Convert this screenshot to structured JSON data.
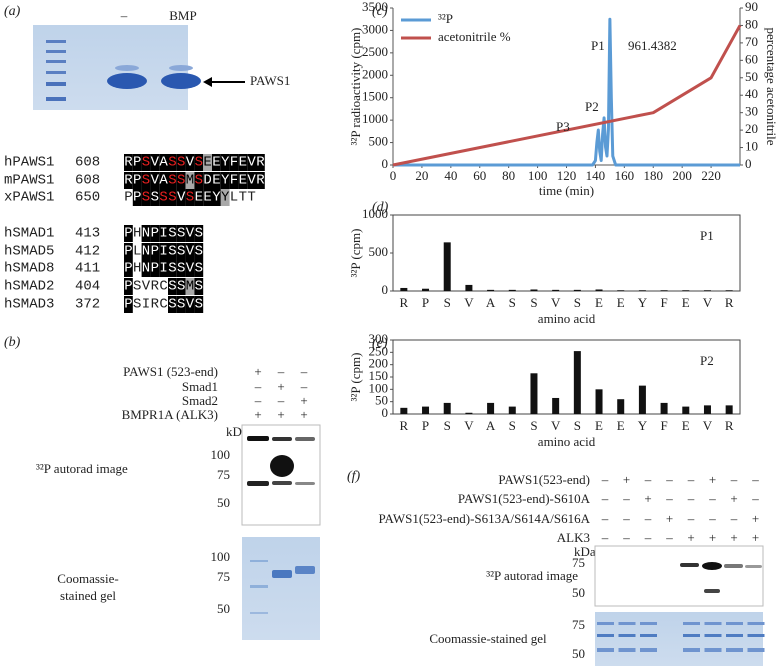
{
  "chart_data": [
    {
      "type": "line",
      "panel": "(c)",
      "xlabel": "time (min)",
      "ylabel": "³²P radioactivity (cpm)",
      "y2label": "percentage acetonitrile",
      "xlim": [
        0,
        240
      ],
      "xticks": [
        0,
        20,
        40,
        60,
        80,
        100,
        120,
        140,
        160,
        180,
        200,
        220
      ],
      "ylim": [
        0,
        3500
      ],
      "yticks": [
        0,
        500,
        1000,
        1500,
        2000,
        2500,
        3000,
        3500
      ],
      "y2lim": [
        0,
        90
      ],
      "y2ticks": [
        0,
        10,
        20,
        30,
        40,
        50,
        60,
        70,
        80,
        90
      ],
      "legend": "upper left",
      "series": [
        {
          "name": "³²P",
          "color": "#5b9bd5",
          "x": [
            0,
            130,
            138,
            140,
            141,
            142,
            143,
            144,
            145,
            146,
            147,
            148,
            149,
            150,
            151,
            152,
            154,
            160,
            240
          ],
          "values": [
            0,
            0,
            0,
            100,
            500,
            780,
            300,
            100,
            700,
            1050,
            400,
            200,
            800,
            3250,
            1500,
            200,
            0,
            0,
            0
          ]
        },
        {
          "name": "acetonitrile %",
          "color": "#c0504d",
          "axis": "y2",
          "x": [
            0,
            180,
            220,
            240
          ],
          "values": [
            0,
            30,
            50,
            80
          ]
        }
      ],
      "annotations": [
        "P1",
        "961.4382",
        "P2",
        "P3"
      ]
    },
    {
      "type": "bar",
      "panel": "(d)",
      "xlabel": "amino acid",
      "ylabel": "³²P (cpm)",
      "annotation": "P1",
      "color": "#111111",
      "categories": [
        "R",
        "P",
        "S",
        "V",
        "A",
        "S",
        "S",
        "V",
        "S",
        "E",
        "E",
        "Y",
        "F",
        "E",
        "V",
        "R"
      ],
      "values": [
        40,
        30,
        640,
        80,
        15,
        15,
        20,
        15,
        15,
        20,
        10,
        10,
        10,
        10,
        10,
        10
      ],
      "ylim": [
        0,
        1000
      ],
      "yticks": [
        0,
        500,
        1000
      ]
    },
    {
      "type": "bar",
      "panel": "(e)",
      "xlabel": "amino acid",
      "ylabel": "³²P (cpm)",
      "annotation": "P2",
      "color": "#111111",
      "categories": [
        "R",
        "P",
        "S",
        "V",
        "A",
        "S",
        "S",
        "V",
        "S",
        "E",
        "E",
        "Y",
        "F",
        "E",
        "V",
        "R"
      ],
      "values": [
        25,
        30,
        45,
        5,
        45,
        30,
        165,
        65,
        255,
        100,
        60,
        115,
        45,
        30,
        35,
        35
      ],
      "ylim": [
        0,
        300
      ],
      "yticks": [
        0,
        50,
        100,
        150,
        200,
        250,
        300
      ]
    }
  ],
  "panel_a": {
    "label": "(a)",
    "lanes": [
      "–",
      "BMP"
    ],
    "band_label": "PAWS1",
    "alignment": [
      {
        "name": "hPAWS1",
        "start": 608,
        "residues": [
          "R",
          "P",
          "S",
          "V",
          "A",
          "S",
          "S",
          "V",
          "S",
          "E",
          "E",
          "Y",
          "F",
          "E",
          "V",
          "R"
        ],
        "shading": [
          "black",
          "black",
          "red",
          "black",
          "black",
          "red",
          "red",
          "black",
          "red",
          "gray",
          "black",
          "black",
          "black",
          "black",
          "black",
          "black"
        ]
      },
      {
        "name": "mPAWS1",
        "start": 608,
        "residues": [
          "R",
          "P",
          "S",
          "V",
          "A",
          "S",
          "S",
          "M",
          "S",
          "D",
          "E",
          "Y",
          "F",
          "E",
          "V",
          "R"
        ],
        "shading": [
          "black",
          "black",
          "red",
          "black",
          "black",
          "red",
          "red",
          "gray",
          "red",
          "black",
          "black",
          "black",
          "black",
          "black",
          "black",
          "black"
        ]
      },
      {
        "name": "xPAWS1",
        "start": 650,
        "residues": [
          "P",
          "P",
          "S",
          "S",
          "S",
          "S",
          "V",
          "S",
          "E",
          "E",
          "Y",
          "Y",
          "L",
          "T",
          "T"
        ],
        "shading": [
          "none",
          "black",
          "red",
          "black",
          "red",
          "red",
          "black",
          "red",
          "black",
          "black",
          "black",
          "gray",
          "none",
          "none",
          "none"
        ]
      },
      {
        "name": "hSMAD1",
        "start": 413,
        "residues": [
          "P",
          "H",
          "N",
          "P",
          "I",
          "S",
          "S",
          "V",
          "S"
        ],
        "shading": [
          "black",
          "none",
          "black",
          "black",
          "black",
          "black",
          "black",
          "black",
          "black"
        ]
      },
      {
        "name": "hSMAD5",
        "start": 412,
        "residues": [
          "P",
          "L",
          "N",
          "P",
          "I",
          "S",
          "S",
          "V",
          "S"
        ],
        "shading": [
          "black",
          "none",
          "black",
          "black",
          "black",
          "black",
          "black",
          "black",
          "black"
        ]
      },
      {
        "name": "hSMAD8",
        "start": 411,
        "residues": [
          "P",
          "H",
          "N",
          "P",
          "I",
          "S",
          "S",
          "V",
          "S"
        ],
        "shading": [
          "black",
          "none",
          "black",
          "black",
          "black",
          "black",
          "black",
          "black",
          "black"
        ]
      },
      {
        "name": "hSMAD2",
        "start": 404,
        "residues": [
          "P",
          "S",
          "V",
          "R",
          "C",
          "S",
          "S",
          "M",
          "S"
        ],
        "shading": [
          "black",
          "none",
          "none",
          "none",
          "none",
          "black",
          "black",
          "gray",
          "black"
        ]
      },
      {
        "name": "hSMAD3",
        "start": 372,
        "residues": [
          "P",
          "S",
          "I",
          "R",
          "C",
          "S",
          "S",
          "V",
          "S"
        ],
        "shading": [
          "black",
          "none",
          "none",
          "none",
          "none",
          "black",
          "black",
          "black",
          "black"
        ]
      }
    ]
  },
  "panel_b": {
    "label": "(b)",
    "conditions": [
      {
        "name": "PAWS1 (523-end)",
        "lanes": [
          "+",
          "–",
          "–"
        ]
      },
      {
        "name": "Smad1",
        "lanes": [
          "–",
          "+",
          "–"
        ]
      },
      {
        "name": "Smad2",
        "lanes": [
          "–",
          "–",
          "+"
        ]
      },
      {
        "name": "BMPR1A (ALK3)",
        "lanes": [
          "+",
          "+",
          "+"
        ]
      }
    ],
    "kda": "kDa",
    "autorad": "³²P autorad image",
    "autorad_markers": [
      100,
      75,
      50
    ],
    "stain": [
      "Coomassie-",
      "stained gel"
    ],
    "stain_markers": [
      100,
      75,
      50
    ]
  },
  "panel_f": {
    "label": "(f)",
    "conditions": [
      {
        "name": "PAWS1(523-end)",
        "lanes": [
          "–",
          "+",
          "–",
          "–",
          "–",
          "+",
          "–",
          "–"
        ]
      },
      {
        "name": "PAWS1(523-end)-S610A",
        "lanes": [
          "–",
          "–",
          "+",
          "–",
          "–",
          "–",
          "+",
          "–"
        ]
      },
      {
        "name": "PAWS1(523-end)-S613A/S614A/S616A",
        "lanes": [
          "–",
          "–",
          "–",
          "+",
          "–",
          "–",
          "–",
          "+"
        ]
      },
      {
        "name": "ALK3",
        "lanes": [
          "–",
          "–",
          "–",
          "–",
          "+",
          "+",
          "+",
          "+"
        ]
      }
    ],
    "kda": "kDa",
    "autorad": "³²P autorad image",
    "autorad_markers": [
      75,
      50
    ],
    "stain": "Coomassie-stained gel",
    "stain_markers": [
      75,
      50
    ]
  }
}
